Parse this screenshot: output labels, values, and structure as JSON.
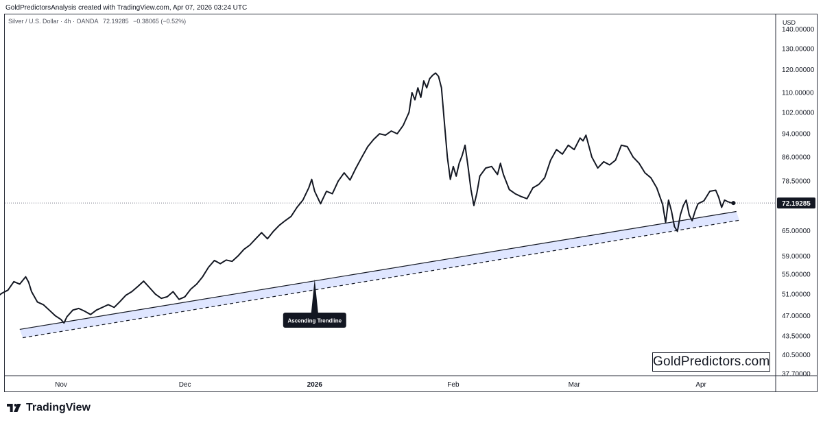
{
  "header": {
    "attribution": "GoldPredictorsAnalysis created with TradingView.com, Apr 07, 2026 03:24 UTC"
  },
  "symbol_info": {
    "name": "Silver / U.S. Dollar · 4h · OANDA",
    "last": "72.19285",
    "change": "−0.38065 (−0.52%)"
  },
  "watermark": "GoldPredictors.com",
  "footer": {
    "brand": "TradingView"
  },
  "colors": {
    "price_line": "#131722",
    "trend_band": "#dfe6ff",
    "trend_line": "#131722",
    "axis_text": "#131722",
    "label_bg": "#131722"
  },
  "chart_data": {
    "type": "line",
    "series": [
      {
        "values": [
          [
            -48,
            48.3
          ],
          [
            -46,
            48.0
          ],
          [
            -44,
            49.1
          ],
          [
            -42,
            50.4
          ],
          [
            -40,
            51.2
          ],
          [
            -38,
            51.8
          ],
          [
            -36,
            53.5
          ],
          [
            -34,
            53.0
          ],
          [
            -32,
            54.5
          ],
          [
            -31,
            53.4
          ],
          [
            -30,
            51.5
          ],
          [
            -28,
            49.5
          ],
          [
            -26,
            49.0
          ],
          [
            -24,
            48.0
          ],
          [
            -22,
            47.0
          ],
          [
            -20,
            46.3
          ],
          [
            -19,
            45.7
          ],
          [
            -18,
            46.8
          ],
          [
            -16,
            48.0
          ],
          [
            -14,
            48.3
          ],
          [
            -12,
            47.8
          ],
          [
            -10,
            47.2
          ],
          [
            -8,
            48.0
          ],
          [
            -6,
            48.5
          ],
          [
            -4,
            49.0
          ],
          [
            -2,
            48.5
          ],
          [
            0,
            49.6
          ],
          [
            2,
            50.8
          ],
          [
            4,
            51.5
          ],
          [
            6,
            52.5
          ],
          [
            8,
            53.6
          ],
          [
            10,
            52.3
          ],
          [
            12,
            51.0
          ],
          [
            14,
            50.2
          ],
          [
            16,
            50.5
          ],
          [
            18,
            51.5
          ],
          [
            20,
            50.0
          ],
          [
            22,
            50.5
          ],
          [
            24,
            52.0
          ],
          [
            26,
            53.0
          ],
          [
            28,
            54.5
          ],
          [
            30,
            56.5
          ],
          [
            32,
            58.0
          ],
          [
            34,
            57.3
          ],
          [
            36,
            58.1
          ],
          [
            38,
            57.8
          ],
          [
            40,
            59.0
          ],
          [
            42,
            60.5
          ],
          [
            44,
            61.5
          ],
          [
            46,
            63.0
          ],
          [
            48,
            64.5
          ],
          [
            50,
            63.0
          ],
          [
            52,
            64.8
          ],
          [
            54,
            66.3
          ],
          [
            56,
            67.5
          ],
          [
            58,
            68.6
          ],
          [
            60,
            71.0
          ],
          [
            62,
            73.0
          ],
          [
            64,
            76.5
          ],
          [
            65,
            79.0
          ],
          [
            66,
            75.5
          ],
          [
            68,
            72.0
          ],
          [
            70,
            75.5
          ],
          [
            72,
            74.8
          ],
          [
            74,
            78.5
          ],
          [
            76,
            81.0
          ],
          [
            78,
            78.8
          ],
          [
            80,
            82.5
          ],
          [
            82,
            86.0
          ],
          [
            84,
            89.5
          ],
          [
            86,
            92.0
          ],
          [
            88,
            94.0
          ],
          [
            90,
            93.5
          ],
          [
            92,
            95.0
          ],
          [
            94,
            94.0
          ],
          [
            96,
            97.0
          ],
          [
            98,
            102.0
          ],
          [
            99,
            110.0
          ],
          [
            100,
            107.0
          ],
          [
            101,
            112.0
          ],
          [
            102,
            108.0
          ],
          [
            103,
            115.0
          ],
          [
            104,
            112.0
          ],
          [
            105,
            116.0
          ],
          [
            106,
            117.5
          ],
          [
            107,
            118.5
          ],
          [
            108,
            117.0
          ],
          [
            109,
            112.0
          ],
          [
            110,
            98.0
          ],
          [
            111,
            86.0
          ],
          [
            112,
            79.0
          ],
          [
            113,
            83.0
          ],
          [
            114,
            80.0
          ],
          [
            115,
            84.0
          ],
          [
            116,
            86.5
          ],
          [
            117,
            90.0
          ],
          [
            118,
            83.0
          ],
          [
            119,
            76.0
          ],
          [
            120,
            71.5
          ],
          [
            121,
            75.0
          ],
          [
            122,
            80.0
          ],
          [
            124,
            82.5
          ],
          [
            126,
            83.0
          ],
          [
            128,
            80.5
          ],
          [
            129,
            84.0
          ],
          [
            130,
            80.5
          ],
          [
            132,
            76.0
          ],
          [
            134,
            74.8
          ],
          [
            136,
            74.0
          ],
          [
            138,
            73.4
          ],
          [
            140,
            76.5
          ],
          [
            142,
            77.5
          ],
          [
            144,
            79.5
          ],
          [
            146,
            85.0
          ],
          [
            148,
            88.5
          ],
          [
            150,
            87.0
          ],
          [
            152,
            90.0
          ],
          [
            154,
            88.5
          ],
          [
            156,
            92.5
          ],
          [
            157,
            91.5
          ],
          [
            158,
            93.5
          ],
          [
            160,
            86.0
          ],
          [
            162,
            82.5
          ],
          [
            164,
            84.5
          ],
          [
            166,
            83.5
          ],
          [
            168,
            85.0
          ],
          [
            170,
            90.0
          ],
          [
            172,
            89.5
          ],
          [
            174,
            86.0
          ],
          [
            176,
            84.0
          ],
          [
            178,
            81.0
          ],
          [
            180,
            79.5
          ],
          [
            182,
            76.5
          ],
          [
            184,
            71.8
          ],
          [
            185,
            67.0
          ],
          [
            186,
            73.0
          ],
          [
            187,
            70.0
          ],
          [
            188,
            66.0
          ],
          [
            189,
            64.8
          ],
          [
            190,
            69.0
          ],
          [
            191,
            71.5
          ],
          [
            192,
            73.0
          ],
          [
            193,
            69.0
          ],
          [
            194,
            67.5
          ],
          [
            195,
            70.0
          ],
          [
            196,
            72.0
          ],
          [
            198,
            72.8
          ],
          [
            200,
            75.5
          ],
          [
            202,
            75.8
          ],
          [
            203,
            73.8
          ],
          [
            204,
            71.0
          ],
          [
            205,
            73.0
          ],
          [
            206,
            72.6
          ],
          [
            207,
            72.3
          ],
          [
            208,
            72.19285
          ]
        ]
      }
    ],
    "y_ticks": [
      "37.70000",
      "40.50000",
      "43.50000",
      "47.00000",
      "51.00000",
      "55.00000",
      "59.00000",
      "65.00000",
      "72.00000",
      "78.50000",
      "86.00000",
      "94.00000",
      "102.00000",
      "110.00000",
      "120.00000",
      "130.00000",
      "140.00000"
    ],
    "y_unit": "USD",
    "last_price": "72.19285",
    "x_ticks": [
      {
        "label": "Nov",
        "x": -20,
        "bold": false
      },
      {
        "label": "Dec",
        "x": 22,
        "bold": false
      },
      {
        "label": "2026",
        "x": 66,
        "bold": true
      },
      {
        "label": "Feb",
        "x": 113,
        "bold": false
      },
      {
        "label": "Mar",
        "x": 154,
        "bold": false
      },
      {
        "label": "Apr",
        "x": 197,
        "bold": false
      }
    ],
    "trendline": {
      "label": "Ascending Trendline",
      "points": [
        [
          -34,
          44.6
        ],
        [
          209,
          69.9
        ]
      ],
      "lower_points": [
        [
          -33,
          43.2
        ],
        [
          210,
          67.6
        ]
      ],
      "label_anchor": [
        66,
        54.0
      ]
    }
  }
}
